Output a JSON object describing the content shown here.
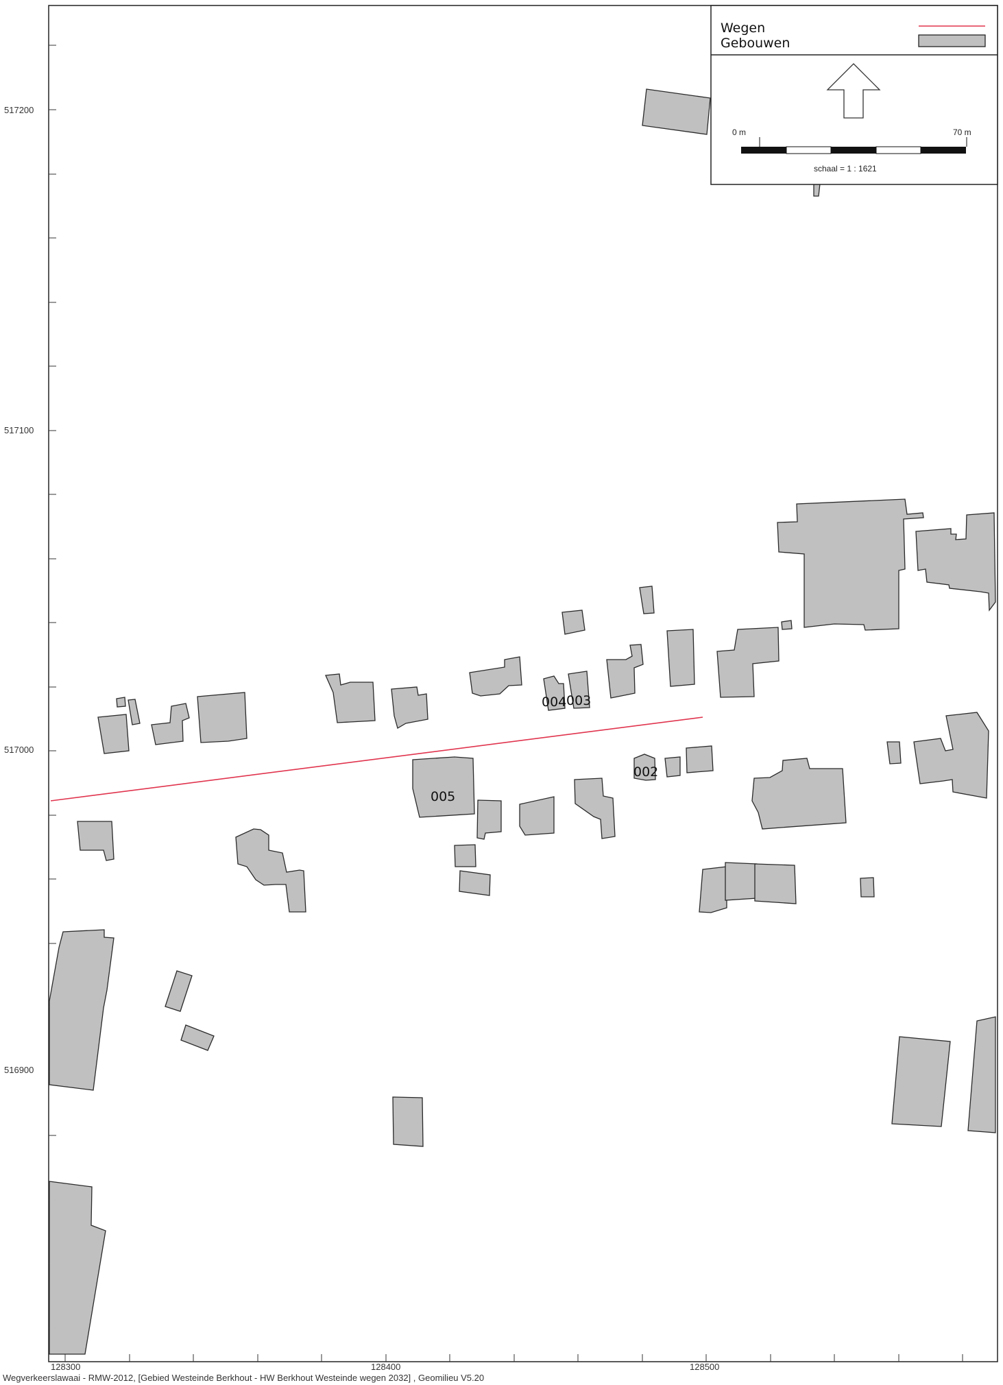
{
  "map": {
    "y_ticks": [
      "517200",
      "517100",
      "517000",
      "516900"
    ],
    "x_ticks": [
      "128300",
      "128400",
      "128500"
    ],
    "footer": "Wegverkeerslawaai - RMW-2012, [Gebied Westeinde Berkhout - HW Berkhout Westeinde wegen 2032] , Geomilieu V5.20"
  },
  "legend": {
    "items": [
      {
        "label": "Wegen",
        "symbol": "red-line-icon",
        "color": "#e0334d"
      },
      {
        "label": "Gebouwen",
        "symbol": "grey-box-icon",
        "color": "#c0c0c0"
      }
    ],
    "north_arrow": "north-arrow-icon",
    "scale_start": "0 m",
    "scale_end": "70 m",
    "scale_text": "schaal = 1 : 1621"
  },
  "labels": [
    "005",
    "004",
    "003",
    "002"
  ],
  "colors": {
    "road": "#e0334d",
    "building_fill": "#c0c0c0",
    "building_stroke": "#2a2a2a"
  }
}
